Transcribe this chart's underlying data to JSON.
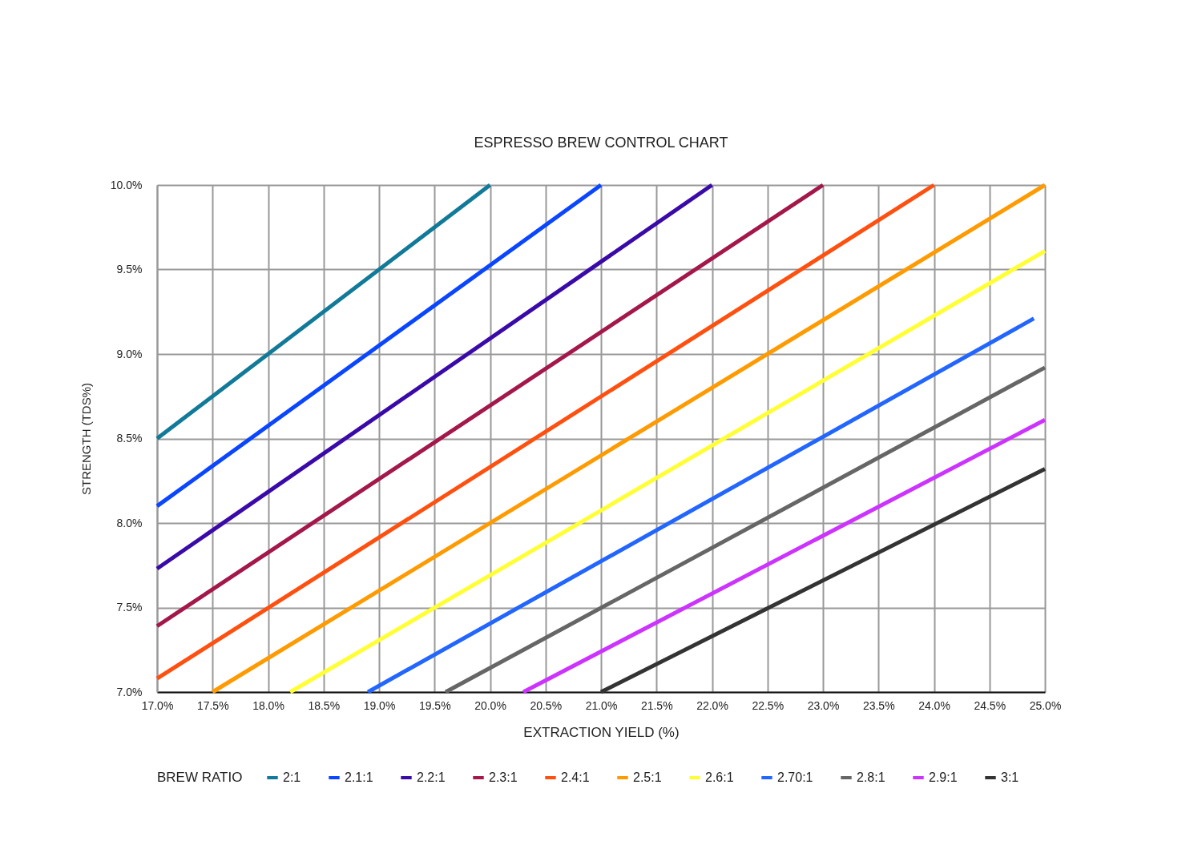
{
  "chart_data": {
    "type": "line",
    "title": "ESPRESSO BREW CONTROL CHART",
    "xlabel": "EXTRACTION YIELD (%)",
    "ylabel": "STRENGTH (TDS%)",
    "legend_title": "BREW RATIO",
    "legend": "bottom",
    "grid": true,
    "line_style": "solid",
    "xlim": [
      17,
      25
    ],
    "ylim": [
      7,
      10
    ],
    "xticks": [
      {
        "value": 17,
        "label": "17.0%"
      },
      {
        "value": 17.5,
        "label": "17.5%"
      },
      {
        "value": 18,
        "label": "18.0%"
      },
      {
        "value": 18.5,
        "label": "18.5%"
      },
      {
        "value": 19,
        "label": "19.0%"
      },
      {
        "value": 19.5,
        "label": "19.5%"
      },
      {
        "value": 20,
        "label": "20.0%"
      },
      {
        "value": 20.5,
        "label": "20.5%"
      },
      {
        "value": 21,
        "label": "21.0%"
      },
      {
        "value": 21.5,
        "label": "21.5%"
      },
      {
        "value": 22,
        "label": "22.0%"
      },
      {
        "value": 22.5,
        "label": "22.5%"
      },
      {
        "value": 23,
        "label": "23.0%"
      },
      {
        "value": 23.5,
        "label": "23.5%"
      },
      {
        "value": 24,
        "label": "24.0%"
      },
      {
        "value": 24.5,
        "label": "24.5%"
      },
      {
        "value": 25,
        "label": "25.0%"
      }
    ],
    "yticks": [
      {
        "value": 7,
        "label": "7.0%"
      },
      {
        "value": 7.5,
        "label": "7.5%"
      },
      {
        "value": 8,
        "label": "8.0%"
      },
      {
        "value": 8.5,
        "label": "8.5%"
      },
      {
        "value": 9,
        "label": "9.0%"
      },
      {
        "value": 9.5,
        "label": "9.5%"
      },
      {
        "value": 10,
        "label": "10.0%"
      }
    ],
    "series": [
      {
        "name": "2:1",
        "color": "#117a99",
        "x": [
          17,
          20
        ],
        "values": [
          8.5,
          10
        ]
      },
      {
        "name": "2.1:1",
        "color": "#0a46ff",
        "x": [
          17,
          21
        ],
        "values": [
          8.1,
          10
        ]
      },
      {
        "name": "2.2:1",
        "color": "#3a0aa8",
        "x": [
          17,
          22
        ],
        "values": [
          7.73,
          10
        ]
      },
      {
        "name": "2.3:1",
        "color": "#a3174a",
        "x": [
          17,
          23
        ],
        "values": [
          7.39,
          10
        ]
      },
      {
        "name": "2.4:1",
        "color": "#ff5010",
        "x": [
          17,
          24
        ],
        "values": [
          7.08,
          10
        ]
      },
      {
        "name": "2.5:1",
        "color": "#ff9a00",
        "x": [
          17.5,
          25
        ],
        "values": [
          7,
          10
        ]
      },
      {
        "name": "2.6:1",
        "color": "#ffff33",
        "x": [
          18.2,
          25
        ],
        "values": [
          7,
          9.61
        ]
      },
      {
        "name": "2.70:1",
        "color": "#2266ff",
        "x": [
          18.9,
          24.9
        ],
        "values": [
          7,
          9.21
        ]
      },
      {
        "name": "2.8:1",
        "color": "#666666",
        "x": [
          19.6,
          25
        ],
        "values": [
          7,
          8.92
        ]
      },
      {
        "name": "2.9:1",
        "color": "#cc33ff",
        "x": [
          20.3,
          25
        ],
        "values": [
          7,
          8.61
        ]
      },
      {
        "name": "3:1",
        "color": "#333333",
        "x": [
          21,
          25
        ],
        "values": [
          7,
          8.32
        ]
      }
    ]
  }
}
